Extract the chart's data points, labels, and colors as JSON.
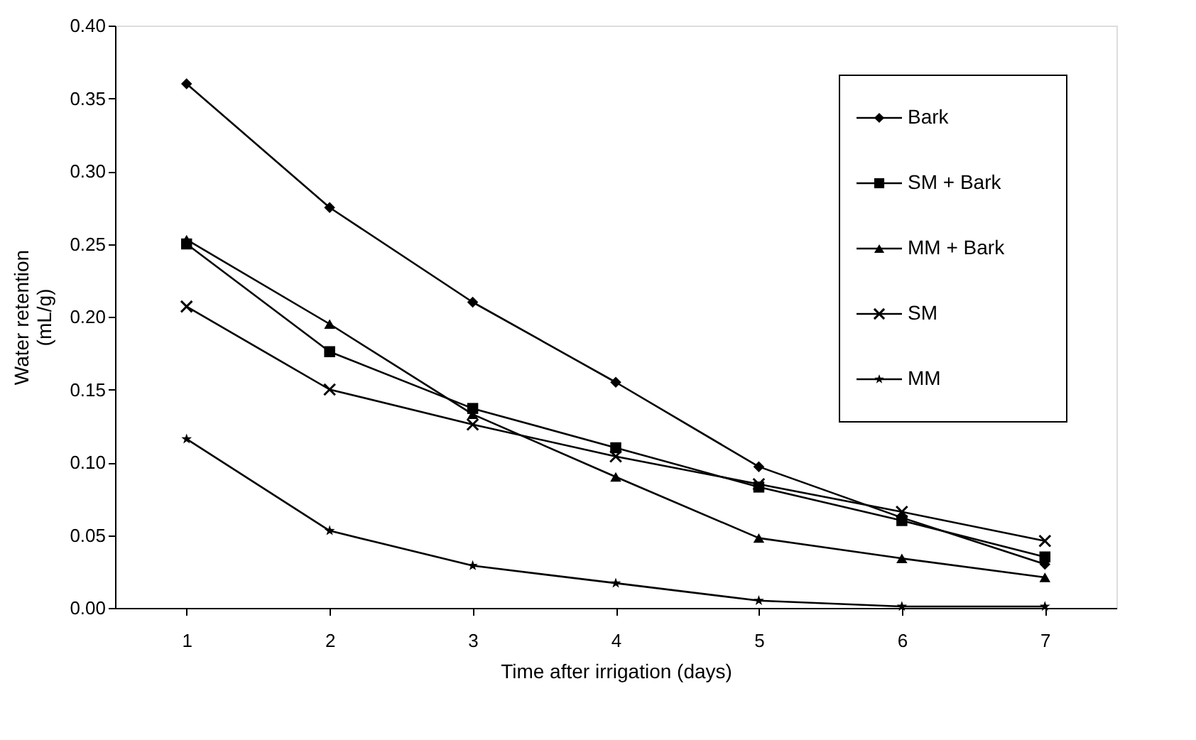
{
  "chart_data": {
    "type": "line",
    "xlabel": "Time after irrigation (days)",
    "ylabel": "Water retention (mL/g)",
    "x": [
      1,
      2,
      3,
      4,
      5,
      6,
      7
    ],
    "xlim": [
      0.5,
      7.5
    ],
    "xticks": [
      1,
      2,
      3,
      4,
      5,
      6,
      7
    ],
    "ylim": [
      0,
      0.4
    ],
    "yticks": [
      {
        "value": 0,
        "label": "0.00"
      },
      {
        "value": 0.05,
        "label": "0.05"
      },
      {
        "value": 0.1,
        "label": "0.10"
      },
      {
        "value": 0.15,
        "label": "0.15"
      },
      {
        "value": 0.2,
        "label": "0.20"
      },
      {
        "value": 0.25,
        "label": "0.25"
      },
      {
        "value": 0.3,
        "label": "0.30"
      },
      {
        "value": 0.35,
        "label": "0.35"
      },
      {
        "value": 0.4,
        "label": "0.40"
      }
    ],
    "grid": false,
    "legend": "top right",
    "line_style": "solid",
    "series": [
      {
        "name": "Bark",
        "color": "#000000",
        "marker": "diamond",
        "values": [
          0.36,
          0.275,
          0.21,
          0.155,
          0.097,
          0.062,
          0.03
        ]
      },
      {
        "name": "SM + Bark",
        "color": "#000000",
        "marker": "square",
        "values": [
          0.25,
          0.176,
          0.137,
          0.11,
          0.083,
          0.06,
          0.035
        ]
      },
      {
        "name": "MM + Bark",
        "color": "#000000",
        "marker": "triangle",
        "values": [
          0.253,
          0.195,
          0.133,
          0.09,
          0.048,
          0.034,
          0.021
        ]
      },
      {
        "name": "SM",
        "color": "#000000",
        "marker": "cross",
        "values": [
          0.207,
          0.15,
          0.126,
          0.104,
          0.085,
          0.066,
          0.046
        ]
      },
      {
        "name": "MM",
        "color": "#000000",
        "marker": "star",
        "values": [
          0.116,
          0.053,
          0.029,
          0.017,
          0.005,
          0.001,
          0.001
        ]
      }
    ]
  }
}
